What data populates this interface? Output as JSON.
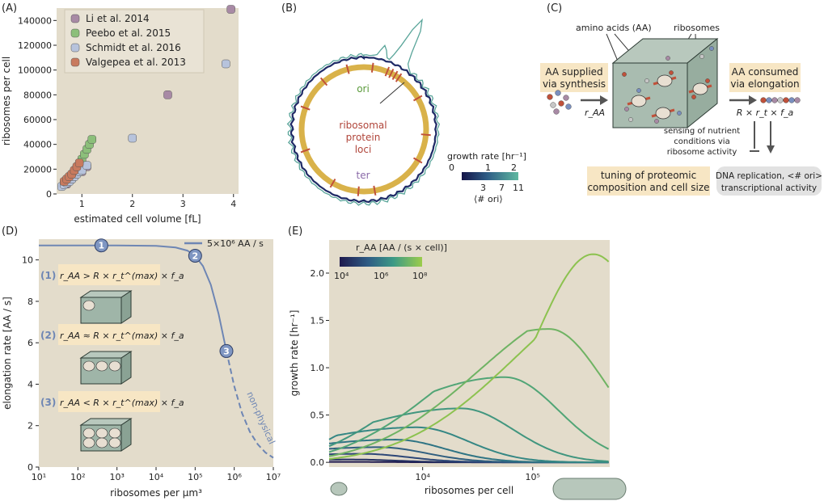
{
  "panels": {
    "A": "(A)",
    "B": "(B)",
    "C": "(C)",
    "D": "(D)",
    "E": "(E)"
  },
  "panel_B": {
    "ori": "ori",
    "ter": "ter",
    "loci_l1": "ribosomal",
    "loci_l2": "protein",
    "loci_l3": "loci",
    "cbar_title": "growth rate [hr⁻¹]",
    "cbar_ticks_top": [
      "0",
      "1",
      "2"
    ],
    "cbar_ticks_bottom": [
      "3",
      "7",
      "11"
    ],
    "cbar_sub": "⟨# ori⟩",
    "colors": {
      "ring": "#d9b24a",
      "loci": "#c0513a",
      "genome": "#1e2a66",
      "trace": "#5aa59a"
    }
  },
  "panel_C": {
    "aa_label": "amino acids (AA)",
    "ribo_label": "ribosomes",
    "supplied_l1": "AA supplied",
    "supplied_l2": "via synthesis",
    "consumed_l1": "AA consumed",
    "consumed_l2": "via elongation",
    "r_aa": "r_AA",
    "r_formula": "R × r_t × f_a",
    "sensing_l1": "sensing of nutrient",
    "sensing_l2": "conditions via",
    "sensing_l3": "ribosome activity",
    "tuning_l1": "tuning of proteomic",
    "tuning_l2": "composition and cell size",
    "dna_l1": "DNA replication, <# ori>",
    "dna_l2": "transcriptional activity",
    "colors": {
      "box_fill": "#f7e6c4",
      "grey_box": "#e2e2e2",
      "cube": "#9fb5a8"
    }
  },
  "panel_D": {
    "legend": "5×10⁶ AA / s",
    "markers": [
      "1",
      "2",
      "3"
    ],
    "regime1": "r_AA > R × r_t^(max) × f_a",
    "regime2": "r_AA ≈ R × r_t^(max) × f_a",
    "regime3": "r_AA < R × r_t^(max) × f_a",
    "regime_nums": [
      "(1)",
      "(2)",
      "(3)"
    ],
    "nonphysical": "non-physical"
  },
  "panel_E": {
    "legend_title": "r_AA [AA / (s × cell)]",
    "legend_ticks": [
      "10⁴",
      "10⁶",
      "10⁸"
    ]
  },
  "chart_data": [
    {
      "id": "A",
      "type": "scatter",
      "xlabel": "estimated cell volume [fL]",
      "ylabel": "ribosomes per cell",
      "xlim": [
        0.5,
        4.1
      ],
      "ylim": [
        0,
        150000
      ],
      "xticks": [
        "1",
        "2",
        "3",
        "4"
      ],
      "yticks": [
        "0",
        "20000",
        "40000",
        "60000",
        "80000",
        "100000",
        "120000",
        "140000"
      ],
      "legend_position": "top-left",
      "series": [
        {
          "name": "Li et al. 2014",
          "color": "#a88aa5",
          "points": [
            [
              0.7,
              8000
            ],
            [
              0.8,
              12000
            ],
            [
              1.0,
              18000
            ],
            [
              1.1,
              22000
            ],
            [
              2.7,
              80000
            ],
            [
              3.95,
              149000
            ]
          ]
        },
        {
          "name": "Peebo et al. 2015",
          "color": "#8cbf7a",
          "points": [
            [
              0.65,
              9000
            ],
            [
              0.75,
              13000
            ],
            [
              0.85,
              18000
            ],
            [
              0.95,
              24000
            ],
            [
              1.0,
              28000
            ],
            [
              1.05,
              32000
            ],
            [
              1.1,
              36000
            ],
            [
              1.15,
              40000
            ],
            [
              1.2,
              44000
            ],
            [
              0.9,
              21000
            ]
          ]
        },
        {
          "name": "Schmidt et al. 2016",
          "color": "#b7c3dc",
          "points": [
            [
              0.6,
              6000
            ],
            [
              0.65,
              7500
            ],
            [
              0.7,
              9000
            ],
            [
              0.75,
              10000
            ],
            [
              0.8,
              12000
            ],
            [
              0.85,
              14000
            ],
            [
              0.9,
              16000
            ],
            [
              0.95,
              18000
            ],
            [
              1.0,
              19000
            ],
            [
              1.1,
              23000
            ],
            [
              2.0,
              45000
            ],
            [
              3.85,
              105000
            ]
          ]
        },
        {
          "name": "Valgepea et al. 2013",
          "color": "#c87a5e",
          "points": [
            [
              0.65,
              10000
            ],
            [
              0.7,
              12000
            ],
            [
              0.75,
              14000
            ],
            [
              0.8,
              16000
            ],
            [
              0.85,
              19000
            ],
            [
              0.9,
              22000
            ],
            [
              0.95,
              25000
            ]
          ]
        }
      ]
    },
    {
      "id": "D",
      "type": "line",
      "xlabel": "ribosomes per μm³",
      "ylabel": "elongation rate [AA / s]",
      "xlim": [
        1,
        7
      ],
      "ylim": [
        0,
        11
      ],
      "xscale": "log",
      "xticks": [
        "10¹",
        "10²",
        "10³",
        "10⁴",
        "10⁵",
        "10⁶",
        "10⁷"
      ],
      "yticks": [
        "0",
        "2",
        "4",
        "6",
        "8",
        "10"
      ],
      "legend_position": "top-right",
      "series": [
        {
          "name": "5×10⁶ AA / s",
          "color": "#6e86b4",
          "log10_x": [
            1,
            2,
            3,
            4,
            4.5,
            4.8,
            5.0,
            5.2,
            5.4,
            5.6,
            5.8,
            6.0,
            6.2,
            6.4,
            6.6,
            6.8,
            7.0
          ],
          "y": [
            10.7,
            10.7,
            10.7,
            10.68,
            10.6,
            10.45,
            10.2,
            9.7,
            8.8,
            7.4,
            5.6,
            3.9,
            2.6,
            1.7,
            1.1,
            0.7,
            0.45
          ]
        }
      ],
      "markers": [
        [
          2.6,
          10.7
        ],
        [
          5.0,
          10.2
        ],
        [
          5.8,
          5.6
        ]
      ]
    },
    {
      "id": "E",
      "type": "line",
      "xlabel": "ribosomes per cell",
      "ylabel": "growth rate [hr⁻¹]",
      "xscale": "log",
      "xlim": [
        3.15,
        5.7
      ],
      "ylim": [
        -0.05,
        2.35
      ],
      "xticks": [
        "10⁴",
        "10⁵"
      ],
      "yticks": [
        "0.0",
        "0.5",
        "1.0",
        "1.5",
        "2.0"
      ],
      "colormap": [
        "#1f1a4e",
        "#2f4d7c",
        "#2f7f86",
        "#4aa17b",
        "#8cc24f"
      ],
      "series": [
        {
          "peak_log10_x": 3.3,
          "peak_y": 0.005
        },
        {
          "peak_log10_x": 3.35,
          "peak_y": 0.03
        },
        {
          "peak_log10_x": 3.45,
          "peak_y": 0.09
        },
        {
          "peak_log10_x": 3.6,
          "peak_y": 0.16
        },
        {
          "peak_log10_x": 3.75,
          "peak_y": 0.24
        },
        {
          "peak_log10_x": 3.95,
          "peak_y": 0.37
        },
        {
          "peak_log10_x": 4.35,
          "peak_y": 0.57
        },
        {
          "peak_log10_x": 4.75,
          "peak_y": 0.9
        },
        {
          "peak_log10_x": 5.15,
          "peak_y": 1.41
        },
        {
          "peak_log10_x": 5.55,
          "peak_y": 2.2
        }
      ]
    }
  ]
}
